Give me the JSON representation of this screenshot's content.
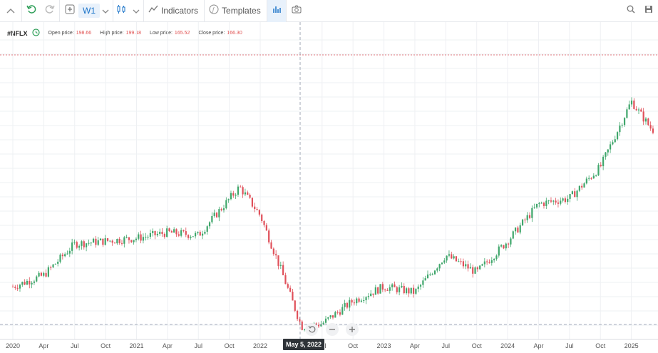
{
  "toolbar": {
    "timeframe": "W1",
    "indicators_label": "Indicators",
    "templates_label": "Templates"
  },
  "instrument": {
    "symbol": "#NFLX",
    "open_label": "Open price:",
    "open_value": "198.66",
    "high_label": "High price:",
    "high_value": "199.18",
    "low_label": "Low price:",
    "low_value": "165.52",
    "close_label": "Close price:",
    "close_value": "166.30"
  },
  "crosshair_date": "May 5, 2022",
  "colors": {
    "up": "#3fa66b",
    "down": "#e0505a",
    "grid": "#eef0f3",
    "accent": "#1a73c8"
  },
  "chart_data": {
    "type": "candlestick",
    "x_tick_labels": [
      "2020",
      "Apr",
      "Jul",
      "Oct",
      "2021",
      "Apr",
      "Jul",
      "Oct",
      "2022",
      "Jul",
      "Oct",
      "2023",
      "Apr",
      "Jul",
      "Oct",
      "2024",
      "Apr",
      "Jul",
      "Oct",
      "2025"
    ],
    "price_path": [
      [
        "2020-01",
        330
      ],
      [
        "2020-04",
        370
      ],
      [
        "2020-07",
        480
      ],
      [
        "2020-10",
        490
      ],
      [
        "2021-01",
        500
      ],
      [
        "2021-04",
        520
      ],
      [
        "2021-07",
        510
      ],
      [
        "2021-11",
        680
      ],
      [
        "2022-01",
        580
      ],
      [
        "2022-03",
        390
      ],
      [
        "2022-05",
        190
      ],
      [
        "2022-07",
        200
      ],
      [
        "2022-10",
        280
      ],
      [
        "2023-01",
        330
      ],
      [
        "2023-04",
        310
      ],
      [
        "2023-07",
        440
      ],
      [
        "2023-10",
        380
      ],
      [
        "2024-01",
        490
      ],
      [
        "2024-04",
        620
      ],
      [
        "2024-07",
        640
      ],
      [
        "2024-10",
        750
      ],
      [
        "2025-01",
        980
      ],
      [
        "2025-03",
        880
      ]
    ]
  }
}
